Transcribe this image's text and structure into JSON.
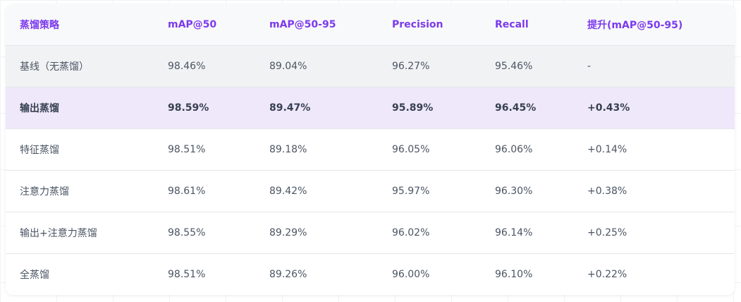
{
  "colors": {
    "header_text": "#7c3aed",
    "highlight_row": "#efe8fb",
    "baseline_row": "#f1f2f4"
  },
  "table": {
    "headers": [
      "蒸馏策略",
      "mAP@50",
      "mAP@50-95",
      "Precision",
      "Recall",
      "提升(mAP@50-95)"
    ],
    "rows": [
      [
        "基线（无蒸馏）",
        "98.46%",
        "89.04%",
        "96.27%",
        "95.46%",
        "-"
      ],
      [
        "输出蒸馏",
        "98.59%",
        "89.47%",
        "95.89%",
        "96.45%",
        "+0.43%"
      ],
      [
        "特征蒸馏",
        "98.51%",
        "89.18%",
        "96.05%",
        "96.06%",
        "+0.14%"
      ],
      [
        "注意力蒸馏",
        "98.61%",
        "89.42%",
        "95.97%",
        "96.30%",
        "+0.38%"
      ],
      [
        "输出+注意力蒸馏",
        "98.55%",
        "89.29%",
        "96.02%",
        "96.14%",
        "+0.25%"
      ],
      [
        "全蒸馏",
        "98.51%",
        "89.26%",
        "96.00%",
        "96.10%",
        "+0.22%"
      ]
    ]
  }
}
